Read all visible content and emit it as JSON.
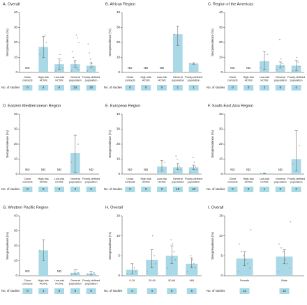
{
  "chart_data": [
    {
      "type": "bar",
      "title": "A. Overall",
      "ylabel": "Seroprevalence (%)",
      "categories": [
        "Close contacts",
        "High-risk HCWs",
        "Low-risk HCWs",
        "General population",
        "Poorly-defined population"
      ],
      "values": [
        null,
        17,
        5.5,
        5.5,
        4.5
      ],
      "ci_low": [
        null,
        10,
        2,
        3.5,
        3
      ],
      "ci_high": [
        null,
        24,
        9,
        8,
        6.5
      ],
      "points": [
        [],
        [
          12,
          20,
          25
        ],
        [
          1,
          3,
          8,
          12
        ],
        [
          1,
          2,
          3,
          5,
          7,
          10,
          14,
          20,
          23,
          25
        ],
        [
          1,
          2,
          4,
          6,
          9,
          13,
          19
        ]
      ],
      "studies": [
        "0",
        "4",
        "6",
        "24",
        "20"
      ],
      "studies_label": "No. of studies",
      "nd_label": "ND",
      "ylim": [
        0,
        40
      ],
      "yticks": [
        0,
        10,
        20,
        30,
        40
      ],
      "color": "#a9d8e6"
    },
    {
      "type": "bar",
      "title": "B. African Region",
      "ylabel": "Seroprevalence (%)",
      "categories": [
        "Close contacts",
        "High-risk HCWs",
        "Low-risk HCWs",
        "General population",
        "Poorly-defined population"
      ],
      "values": [
        null,
        null,
        null,
        25.5,
        6
      ],
      "ci_low": [
        null,
        null,
        null,
        18,
        5.5
      ],
      "ci_high": [
        null,
        null,
        null,
        31,
        6.5
      ],
      "points": [
        [],
        [],
        [],
        [
          25.5
        ],
        [
          6
        ]
      ],
      "studies": [
        "0",
        "0",
        "0",
        "1",
        "1"
      ],
      "studies_label": "No. of studies",
      "nd_label": "ND",
      "ylim": [
        0,
        40
      ],
      "yticks": [
        0,
        10,
        20,
        30,
        40
      ],
      "color": "#a9d8e6"
    },
    {
      "type": "bar",
      "title": "C. Region of the Americas",
      "ylabel": "Seroprevalence (%)",
      "categories": [
        "Close contacts",
        "High-risk HCWs",
        "Low-risk HCWs",
        "General population",
        "Poorly-defined population"
      ],
      "values": [
        null,
        null,
        7.5,
        5,
        4.5
      ],
      "ci_low": [
        null,
        null,
        2,
        3,
        1
      ],
      "ci_high": [
        null,
        null,
        14,
        7,
        8
      ],
      "points": [
        [],
        [],
        [
          3,
          12
        ],
        [
          2,
          4,
          6,
          9,
          22
        ],
        [
          1,
          4,
          7,
          10
        ]
      ],
      "studies": [
        "0",
        "0",
        "2",
        "6",
        "4"
      ],
      "studies_label": "No. of studies",
      "nd_label": "ND",
      "ylim": [
        0,
        40
      ],
      "yticks": [
        0,
        10,
        20,
        30,
        40
      ],
      "color": "#a9d8e6"
    },
    {
      "type": "bar",
      "title": "D. Eastern Mediterranean Region",
      "ylabel": "Seroprevalence (%)",
      "categories": [
        "Close contacts",
        "High-risk HCWs",
        "Low-risk HCWs",
        "General population",
        "Poorly-defined population"
      ],
      "values": [
        null,
        null,
        null,
        14,
        null
      ],
      "ci_low": [
        null,
        null,
        null,
        1,
        null
      ],
      "ci_high": [
        null,
        null,
        null,
        26,
        null
      ],
      "points": [
        [],
        [],
        [],
        [
          8,
          20
        ],
        []
      ],
      "studies": [
        "0",
        "0",
        "0",
        "2",
        "0"
      ],
      "studies_label": "No. of studies",
      "nd_label": "ND",
      "ylim": [
        0,
        40
      ],
      "yticks": [
        0,
        10,
        20,
        30,
        40
      ],
      "color": "#a9d8e6"
    },
    {
      "type": "bar",
      "title": "E. European Region",
      "ylabel": "Seroprevalence (%)",
      "categories": [
        "Close contacts",
        "High-risk HCWs",
        "Low-risk HCWs",
        "General population",
        "Poorly-defined population"
      ],
      "values": [
        null,
        null,
        5,
        4.5,
        4.5
      ],
      "ci_low": [
        null,
        null,
        2,
        3,
        3
      ],
      "ci_high": [
        null,
        null,
        9,
        7,
        6
      ],
      "points": [
        [],
        [],
        [
          2,
          8
        ],
        [
          1,
          3,
          5,
          7,
          10,
          12
        ],
        [
          1,
          3,
          5,
          8,
          11
        ]
      ],
      "studies": [
        "0",
        "0",
        "2",
        "10",
        "10"
      ],
      "studies_label": "No. of studies",
      "nd_label": "ND",
      "ylim": [
        0,
        40
      ],
      "yticks": [
        0,
        10,
        20,
        30,
        40
      ],
      "color": "#a9d8e6"
    },
    {
      "type": "bar",
      "title": "F. South-East Asia Region",
      "ylabel": "Seroprevalence (%)",
      "categories": [
        "Close contacts",
        "High-risk HCWs",
        "Low-risk HCWs",
        "General population",
        "Poorly-defined population"
      ],
      "values": [
        null,
        null,
        0.5,
        null,
        10
      ],
      "ci_low": [
        null,
        null,
        0.3,
        null,
        2
      ],
      "ci_high": [
        null,
        null,
        0.7,
        null,
        29
      ],
      "points": [
        [],
        [],
        [
          0.5
        ],
        [],
        [
          7,
          19
        ]
      ],
      "studies": [
        "0",
        "0",
        "1",
        "0",
        "2"
      ],
      "studies_label": "No. of studies",
      "nd_label": "ND",
      "ylim": [
        0,
        40
      ],
      "yticks": [
        0,
        10,
        20,
        30,
        40
      ],
      "color": "#a9d8e6"
    },
    {
      "type": "bar",
      "title": "G. Western Pacific Region",
      "ylabel": "Seroprevalence (%)",
      "categories": [
        "Close contacts",
        "High-risk HCWs",
        "Low-risk HCWs",
        "General population",
        "Poorly-defined population"
      ],
      "values": [
        null,
        17,
        null,
        2,
        1.5
      ],
      "ci_low": [
        null,
        10,
        null,
        1,
        0.5
      ],
      "ci_high": [
        null,
        24,
        null,
        4,
        3
      ],
      "points": [
        [],
        [
          17
        ],
        [],
        [
          1,
          2,
          4
        ],
        [
          1,
          2
        ]
      ],
      "studies": [
        "0",
        "1",
        "0",
        "5",
        "6"
      ],
      "studies_label": "No. of studies",
      "nd_label": "ND",
      "ylim": [
        0,
        40
      ],
      "yticks": [
        0,
        10,
        20,
        30,
        40
      ],
      "color": "#a9d8e6"
    },
    {
      "type": "bar",
      "title": "H. Overall",
      "ylabel": "Seroprevalence (%)",
      "categories": [
        "0-19",
        "20-49",
        "50-64",
        "≥65"
      ],
      "values": [
        1.5,
        4,
        5,
        3
      ],
      "ci_low": [
        0.5,
        2,
        3,
        2
      ],
      "ci_high": [
        3,
        6.5,
        7.5,
        4.5
      ],
      "points": [
        [
          0.5,
          1,
          2,
          3
        ],
        [
          1,
          3,
          5,
          10
        ],
        [
          2,
          4,
          6,
          8,
          9
        ],
        [
          1,
          2,
          3,
          4,
          5
        ]
      ],
      "studies": [
        "4",
        "4",
        "5",
        "5"
      ],
      "studies_label": "No. of studies",
      "nd_label": "ND",
      "ylim": [
        0,
        15
      ],
      "yticks": [
        0,
        5,
        10,
        15
      ],
      "color": "#a9d8e6"
    },
    {
      "type": "bar",
      "title": "I. Overall",
      "ylabel": "Seroprevalence (%)",
      "categories": [
        "Female",
        "Male"
      ],
      "values": [
        4.3,
        4.8
      ],
      "ci_low": [
        2.5,
        3
      ],
      "ci_high": [
        6,
        6.5
      ],
      "points": [
        [
          1,
          2,
          3,
          4,
          5,
          6,
          8,
          11.5
        ],
        [
          1,
          2,
          3,
          4,
          6,
          7,
          8,
          13.5
        ]
      ],
      "studies": [
        "11",
        "12"
      ],
      "studies_label": "No. of studies",
      "nd_label": "ND",
      "ylim": [
        0,
        15
      ],
      "yticks": [
        0,
        5,
        10,
        15
      ],
      "color": "#a9d8e6"
    }
  ]
}
